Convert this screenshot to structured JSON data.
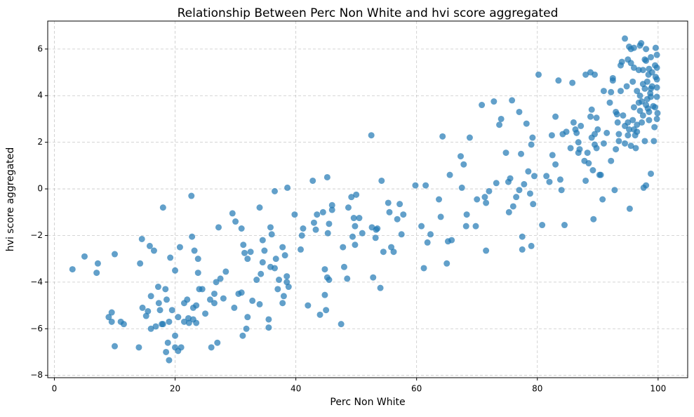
{
  "chart_data": {
    "type": "scatter",
    "title": "Relationship Between Perc Non White and hvi score aggregated",
    "x_label": "Perc Non White",
    "y_label": "hvi score aggregated",
    "color": "#1f77b4",
    "alpha": 0.7,
    "grid": true,
    "xlim": [
      -1.1,
      104.9
    ],
    "ylim": [
      -8.1,
      7.2
    ],
    "xticks": [
      0,
      20,
      40,
      60,
      80,
      100
    ],
    "yticks": [
      {
        "value": -8,
        "label": "−8"
      },
      {
        "value": -6,
        "label": "−6"
      },
      {
        "value": -4,
        "label": "−4"
      },
      {
        "value": -2,
        "label": "−2"
      },
      0,
      2,
      4,
      6
    ],
    "x": [
      3,
      5,
      7,
      7.2,
      9,
      9.5,
      9.5,
      10,
      10,
      11,
      11.5,
      14,
      14.2,
      14.5,
      14.6,
      15.2,
      15.5,
      15.8,
      16,
      16,
      16.5,
      16.8,
      17.2,
      17.3,
      17.5,
      17.8,
      18,
      18,
      18.4,
      18.5,
      18.6,
      18.8,
      19,
      19,
      19.2,
      19.5,
      20,
      20,
      20,
      20.5,
      20.5,
      20.8,
      21,
      21.5,
      21.5,
      22,
      22.2,
      22.3,
      22.7,
      22.8,
      23,
      23,
      23.2,
      23.5,
      23.5,
      23.8,
      23.8,
      24,
      24.5,
      25,
      25.8,
      26,
      26.5,
      26.5,
      26.8,
      27,
      27.2,
      27.5,
      28,
      28.4,
      29.5,
      29.8,
      30,
      30.5,
      31,
      31,
      31.2,
      31.3,
      31.5,
      31.8,
      32,
      32,
      32.5,
      32.8,
      33.5,
      34,
      34,
      34.2,
      34.5,
      34.5,
      34.8,
      35.5,
      35.5,
      35.8,
      35.8,
      36,
      36.5,
      36.5,
      36.7,
      37,
      37.2,
      37.8,
      37.8,
      38,
      38.2,
      38.5,
      38.5,
      38.6,
      38.8,
      39.8,
      40.8,
      41,
      41.2,
      42,
      42.8,
      43,
      43.3,
      43.5,
      44,
      44.5,
      44.8,
      44.8,
      45,
      45.2,
      45.3,
      45.5,
      45.2,
      45.5,
      46,
      46,
      47.5,
      47.8,
      48,
      48.5,
      48.7,
      49.2,
      49.4,
      49.6,
      49.8,
      49.8,
      50,
      50.5,
      51,
      52.5,
      52.6,
      52.8,
      53.2,
      53.3,
      53.5,
      54,
      54.2,
      54.5,
      55.3,
      55.5,
      55.8,
      56.2,
      56.8,
      57.2,
      57.8,
      57.5,
      59.8,
      60.8,
      61.2,
      61.5,
      61.8,
      62.3,
      63.7,
      64,
      64.3,
      65,
      65.2,
      65.8,
      65.5,
      67.3,
      67.5,
      67.8,
      68.2,
      68.3,
      68.8,
      69.8,
      70,
      70.8,
      71.3,
      71.5,
      71.5,
      72,
      72.8,
      73.2,
      73.7,
      74,
      74.8,
      75.2,
      75.3,
      75.5,
      75.8,
      76,
      76.5,
      77,
      77,
      77.3,
      77.5,
      77.5,
      77.8,
      78.2,
      78.5,
      78.8,
      79,
      79,
      79.2,
      79.3,
      79.5,
      80.2,
      80.8,
      81.5,
      82,
      82.4,
      82.5,
      83,
      83,
      83.5,
      83.8,
      84,
      84.2,
      84.5,
      84.8,
      85.5,
      85.8,
      86,
      86.3,
      86.5,
      86.8,
      86.8,
      87,
      87.2,
      87.8,
      88,
      88,
      88.3,
      88.5,
      88.8,
      88.8,
      89,
      89,
      89.2,
      89.3,
      89.5,
      89.5,
      89.5,
      89.8,
      89.8,
      90,
      90.3,
      90.5,
      90.8,
      91,
      91,
      91.5,
      92,
      92.2,
      92.2,
      92.5,
      92.5,
      92.8,
      93,
      93,
      93.2,
      93.3,
      93.5,
      93.5,
      93.8,
      93.8,
      94,
      94.2,
      94.5,
      94.5,
      94.5,
      94.8,
      95,
      95,
      95,
      95.2,
      95.2,
      95.3,
      95.5,
      95.5,
      95.5,
      95.8,
      95.8,
      96,
      96,
      96,
      96,
      96.2,
      96.3,
      96.5,
      96.5,
      96.5,
      96.8,
      96.8,
      97,
      97,
      97,
      97.2,
      97.3,
      97.3,
      97.5,
      97.5,
      97.5,
      97.6,
      97.8,
      97.8,
      97.8,
      98,
      98,
      98,
      98,
      98.2,
      98.2,
      98.3,
      98.4,
      98.5,
      98.5,
      98.5,
      98.7,
      98.8,
      98.8,
      98.8,
      98.8,
      99,
      99,
      99.2,
      99.3,
      99.4,
      99.5,
      99.5,
      99.6,
      99.6,
      99.8,
      99.8,
      99.8,
      99.8,
      99.8,
      99.8,
      99.9
    ],
    "values": [
      -3.45,
      -2.9,
      -3.6,
      -3.2,
      -5.5,
      -5.3,
      -5.7,
      -6.75,
      -2.8,
      -5.7,
      -5.8,
      -6.8,
      -3.2,
      -2.15,
      -5.1,
      -5.45,
      -5.25,
      -2.45,
      -4.6,
      -6,
      -2.65,
      -5.9,
      -4.2,
      -4.9,
      -5.2,
      -5.8,
      -0.8,
      -5.8,
      -4.3,
      -7,
      -4.75,
      -6.6,
      -5.7,
      -7.35,
      -2.95,
      -5.2,
      -6.3,
      -6.8,
      -3.5,
      -5.5,
      -6.95,
      -2.5,
      -6.8,
      -5.7,
      -4.9,
      -4.75,
      -5.55,
      -5.75,
      -0.3,
      -2.05,
      -5.6,
      -5.1,
      -2.65,
      -5.75,
      -5,
      -3.6,
      -3,
      -4.3,
      -4.3,
      -5.35,
      -4.75,
      -6.8,
      -4.9,
      -4.5,
      -4,
      -6.6,
      -1.65,
      -3.85,
      -4.7,
      -3.55,
      -1.05,
      -5.1,
      -1.4,
      -4.5,
      -4.45,
      -1.7,
      -6.3,
      -2.4,
      -2.75,
      -6,
      -3,
      -5.5,
      -2.7,
      -4.8,
      -3.9,
      -0.8,
      -4.95,
      -3.65,
      -2.2,
      -3.15,
      -2.65,
      -5.6,
      -5.95,
      -1.65,
      -3.35,
      -1.95,
      -3.4,
      -0.1,
      -3,
      -4.3,
      -3.9,
      -2.5,
      -4.9,
      -4.6,
      -2.85,
      -4,
      -3.75,
      0.05,
      -4.2,
      -1.1,
      -2.6,
      -2,
      -1.7,
      -5,
      0.35,
      -1.45,
      -1.75,
      -1.1,
      -5.4,
      -1,
      -4.55,
      -3.45,
      -5.2,
      0.5,
      -1.9,
      -1.5,
      -3.8,
      -3.9,
      -0.9,
      -0.7,
      -5.8,
      -2.5,
      -3.35,
      -3.85,
      -0.8,
      -0.35,
      -2.05,
      -1.25,
      -2.4,
      -1.6,
      -0.25,
      -1.25,
      -1.9,
      2.3,
      -1.65,
      -3.8,
      -2.1,
      -1.75,
      -1.7,
      -4.25,
      0.35,
      -2.7,
      -0.6,
      -1,
      -2.5,
      -2.7,
      -1.3,
      -0.65,
      -1.1,
      -1.95,
      0.15,
      -1.6,
      -3.4,
      0.15,
      -2.3,
      -1.95,
      -0.45,
      -1.2,
      2.25,
      -3.2,
      -2.25,
      -2.2,
      0.6,
      1.4,
      0.05,
      1.05,
      -1.6,
      -1.1,
      2.2,
      -1.6,
      -0.45,
      3.6,
      -0.35,
      -2.65,
      -0.6,
      -0.1,
      3.75,
      0.25,
      2.75,
      3,
      1.55,
      0.3,
      -1,
      0.45,
      3.8,
      -0.75,
      -0.35,
      3.3,
      -0.05,
      1.5,
      -2.6,
      -2.05,
      0.2,
      2.8,
      0.75,
      -0.2,
      -2.45,
      1.9,
      2.2,
      -0.65,
      0.55,
      4.9,
      -1.55,
      0.55,
      0.3,
      2.3,
      1.45,
      3.1,
      1.05,
      4.65,
      0.4,
      -0.05,
      2.35,
      -1.55,
      2.45,
      1.75,
      4.55,
      2.85,
      2.55,
      2.4,
      1.55,
      2,
      1.7,
      2.7,
      1.2,
      4.9,
      0.35,
      1.55,
      1.1,
      5,
      3.1,
      3.4,
      2.2,
      0.8,
      -1.3,
      4.9,
      1.9,
      2.35,
      1.75,
      3.05,
      2.55,
      0.6,
      0.6,
      -0.45,
      4.2,
      1.95,
      2.4,
      3.7,
      4.15,
      1.2,
      4.75,
      4.65,
      -0.05,
      1.7,
      3.3,
      3.2,
      2.85,
      2.05,
      2.35,
      4.2,
      5.3,
      5.45,
      3.15,
      1.95,
      2.7,
      6.45,
      4.4,
      5.55,
      2.3,
      2.85,
      6.1,
      2.55,
      -0.85,
      6,
      5.4,
      1.85,
      2.95,
      4.6,
      5.2,
      6.05,
      3.5,
      2.55,
      2.3,
      1.75,
      4.2,
      2.45,
      2.75,
      3.7,
      5.1,
      4,
      6.15,
      3.35,
      6.25,
      3.75,
      2.85,
      5.1,
      4.5,
      3.15,
      0.05,
      2.05,
      5.55,
      4.3,
      6,
      5.5,
      0.15,
      3.6,
      3.85,
      4.6,
      3.45,
      4.9,
      3.3,
      5.15,
      2.95,
      4.1,
      5.65,
      3.95,
      4.3,
      0.65,
      4.4,
      5,
      3.55,
      2.05,
      2.65,
      3.5,
      5.3,
      6.05,
      4.8,
      3.95,
      5.2,
      5.75,
      3,
      4.35,
      4.7,
      3.25
    ]
  }
}
